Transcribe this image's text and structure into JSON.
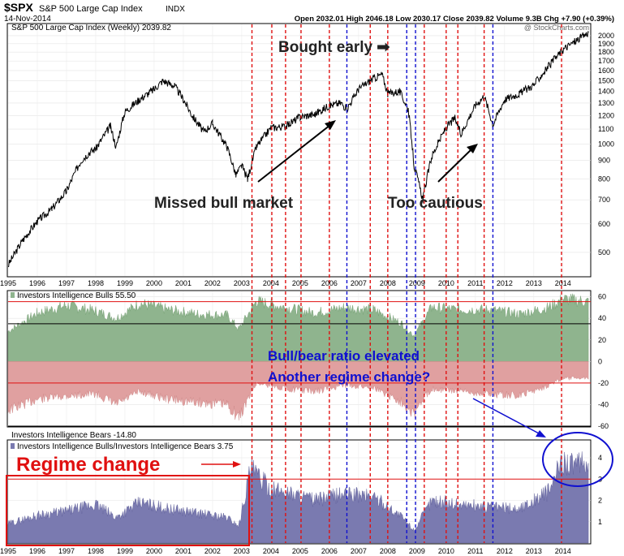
{
  "header": {
    "symbol": "$SPX",
    "symbol_desc": "S&P 500 Large Cap Index",
    "exchange": "INDX",
    "date": "14-Nov-2014",
    "ohlc_text": "Open 2032.01   High 2046.18   Low 2030.17   Close 2039.82   Volume 9.3B   Chg +7.90 (+0.39%)",
    "watermark": "@ StockCharts.com"
  },
  "chart_data": [
    {
      "type": "line",
      "panel": "price",
      "title": "S&P 500 Large Cap Index (Weekly) 2039.82",
      "y_scale": "log",
      "ylim": [
        430,
        2150
      ],
      "y_ticks": [
        500,
        600,
        700,
        800,
        900,
        1000,
        1100,
        1200,
        1300,
        1400,
        1500,
        1600,
        1700,
        1800,
        1900,
        2000
      ],
      "x_ticks": [
        "1995",
        "1996",
        "1997",
        "1998",
        "1999",
        "2000",
        "2001",
        "2002",
        "2003",
        "2004",
        "2005",
        "2006",
        "2007",
        "2008",
        "2009",
        "2010",
        "2011",
        "2012",
        "2013",
        "2014"
      ],
      "series": [
        {
          "x": [
            1995.0,
            1995.5,
            1996.0,
            1996.5,
            1997.0,
            1997.5,
            1997.8,
            1998.0,
            1998.5,
            1998.7,
            1999.0,
            1999.5,
            2000.0,
            2000.3,
            2000.7,
            2001.0,
            2001.3,
            2001.7,
            2002.0,
            2002.5,
            2002.8,
            2003.0,
            2003.2,
            2003.5,
            2004.0,
            2004.5,
            2005.0,
            2005.5,
            2006.0,
            2006.4,
            2006.6,
            2007.0,
            2007.5,
            2007.8,
            2008.0,
            2008.4,
            2008.7,
            2008.9,
            2009.2,
            2009.5,
            2010.0,
            2010.3,
            2010.5,
            2011.0,
            2011.3,
            2011.6,
            2012.0,
            2012.5,
            2013.0,
            2013.5,
            2014.0,
            2014.5,
            2014.87
          ],
          "values": [
            460,
            540,
            610,
            660,
            740,
            900,
            950,
            970,
            1120,
            980,
            1230,
            1330,
            1420,
            1500,
            1450,
            1330,
            1200,
            1080,
            1140,
            980,
            820,
            870,
            800,
            980,
            1110,
            1120,
            1190,
            1210,
            1280,
            1300,
            1250,
            1420,
            1520,
            1560,
            1380,
            1400,
            1250,
            870,
            700,
            920,
            1110,
            1180,
            1060,
            1280,
            1360,
            1130,
            1330,
            1380,
            1460,
            1640,
            1830,
            1950,
            2040
          ]
        }
      ],
      "annotations": [
        "Bought early ➡",
        "Missed bull market",
        "Too cautious"
      ]
    },
    {
      "type": "area",
      "panel": "bulls",
      "series_name": "Investors Intelligence Bulls 55.50",
      "ylim": [
        -60,
        65
      ],
      "y_ticks": [
        60,
        40,
        20,
        0,
        -20,
        -40,
        -60
      ],
      "series": [
        {
          "x": [
            1995.0,
            1996.0,
            1997.0,
            1998.0,
            1998.7,
            1999.5,
            2000.5,
            2001.5,
            2002.5,
            2002.9,
            2003.5,
            2004.5,
            2005.5,
            2006.5,
            2007.5,
            2008.5,
            2008.9,
            2009.5,
            2010.5,
            2011.5,
            2012.5,
            2013.5,
            2014.0,
            2014.87
          ],
          "values": [
            28,
            45,
            52,
            47,
            40,
            54,
            48,
            44,
            43,
            30,
            56,
            50,
            45,
            50,
            48,
            35,
            24,
            50,
            48,
            48,
            44,
            50,
            58,
            55.5
          ]
        }
      ]
    },
    {
      "type": "area",
      "panel": "bears",
      "series_name": "Investors Intelligence Bears -14.80",
      "series": [
        {
          "x": [
            1995.0,
            1996.0,
            1997.0,
            1998.0,
            1998.7,
            1999.5,
            2000.5,
            2001.5,
            2002.5,
            2002.9,
            2003.5,
            2004.5,
            2005.5,
            2006.5,
            2007.5,
            2008.5,
            2008.9,
            2009.5,
            2010.5,
            2011.5,
            2012.5,
            2013.5,
            2014.0,
            2014.87
          ],
          "values": [
            -45,
            -35,
            -32,
            -30,
            -40,
            -28,
            -35,
            -38,
            -40,
            -52,
            -20,
            -25,
            -28,
            -22,
            -24,
            -38,
            -48,
            -25,
            -28,
            -30,
            -32,
            -22,
            -16,
            -14.8
          ]
        }
      ],
      "annotations": [
        "Bull/bear ratio elevated",
        "Another regime change?"
      ]
    },
    {
      "type": "area",
      "panel": "ratio",
      "series_name": "Investors Intelligence Bulls/Investors Intelligence Bears 3.75",
      "ylim": [
        0,
        4.8
      ],
      "y_ticks": [
        1,
        2,
        3,
        4
      ],
      "series": [
        {
          "x": [
            1995.0,
            1996.0,
            1997.0,
            1998.0,
            1998.7,
            1999.5,
            2000.5,
            2001.5,
            2002.5,
            2002.9,
            2003.3,
            2004.0,
            2004.5,
            2005.5,
            2006.5,
            2007.5,
            2008.5,
            2008.9,
            2009.5,
            2010.5,
            2011.5,
            2012.5,
            2013.5,
            2014.0,
            2014.5,
            2014.87
          ],
          "values": [
            0.9,
            1.3,
            1.5,
            1.8,
            1.2,
            1.9,
            1.6,
            1.4,
            1.2,
            0.8,
            3.5,
            2.5,
            2.4,
            2.0,
            2.3,
            2.2,
            1.2,
            0.6,
            2.0,
            1.8,
            1.7,
            1.6,
            2.4,
            3.9,
            3.6,
            3.75
          ]
        }
      ],
      "annotations": [
        "Regime change"
      ]
    }
  ],
  "vertical_markers": {
    "red": [
      2003.35,
      2004.03,
      2004.5,
      2005.03,
      2006.0,
      2007.4,
      2008.0,
      2009.25,
      2010.0,
      2010.4,
      2011.3,
      2013.95
    ],
    "blue": [
      2006.6,
      2008.65,
      2008.95,
      2011.6
    ]
  },
  "colors": {
    "price_line": "#000000",
    "bulls_fill": "#8fb48e",
    "bears_fill": "#e0a0a0",
    "ratio_fill": "#7a7ab0",
    "red_line": "#e01010",
    "blue_line": "#1010d0",
    "annotation_red": "#e01010",
    "annotation_blue": "#1010d0"
  }
}
